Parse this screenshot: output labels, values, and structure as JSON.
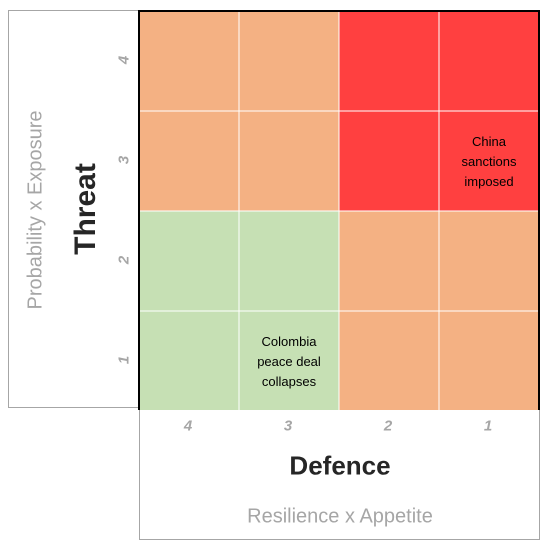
{
  "chart_data": {
    "type": "heatmap",
    "y_axis": {
      "title": "Threat",
      "subtitle": "Probability x Exposure",
      "ticks": [
        "1",
        "2",
        "3",
        "4"
      ]
    },
    "x_axis": {
      "title": "Defence",
      "subtitle": "Resilience x Appetite",
      "ticks": [
        "4",
        "3",
        "2",
        "1"
      ]
    },
    "colors": {
      "green": "#c6e0b4",
      "orange": "#f4b183",
      "red": "#ff4040"
    },
    "cells": [
      [
        "orange",
        "orange",
        "red",
        "red"
      ],
      [
        "orange",
        "orange",
        "red",
        "red"
      ],
      [
        "green",
        "green",
        "orange",
        "orange"
      ],
      [
        "green",
        "green",
        "orange",
        "orange"
      ]
    ],
    "annotations": [
      {
        "row": 1,
        "col": 3,
        "lines": [
          "China",
          "sanctions",
          "imposed"
        ]
      },
      {
        "row": 3,
        "col": 1,
        "lines": [
          "Colombia",
          "peace deal",
          "collapses"
        ]
      }
    ]
  }
}
